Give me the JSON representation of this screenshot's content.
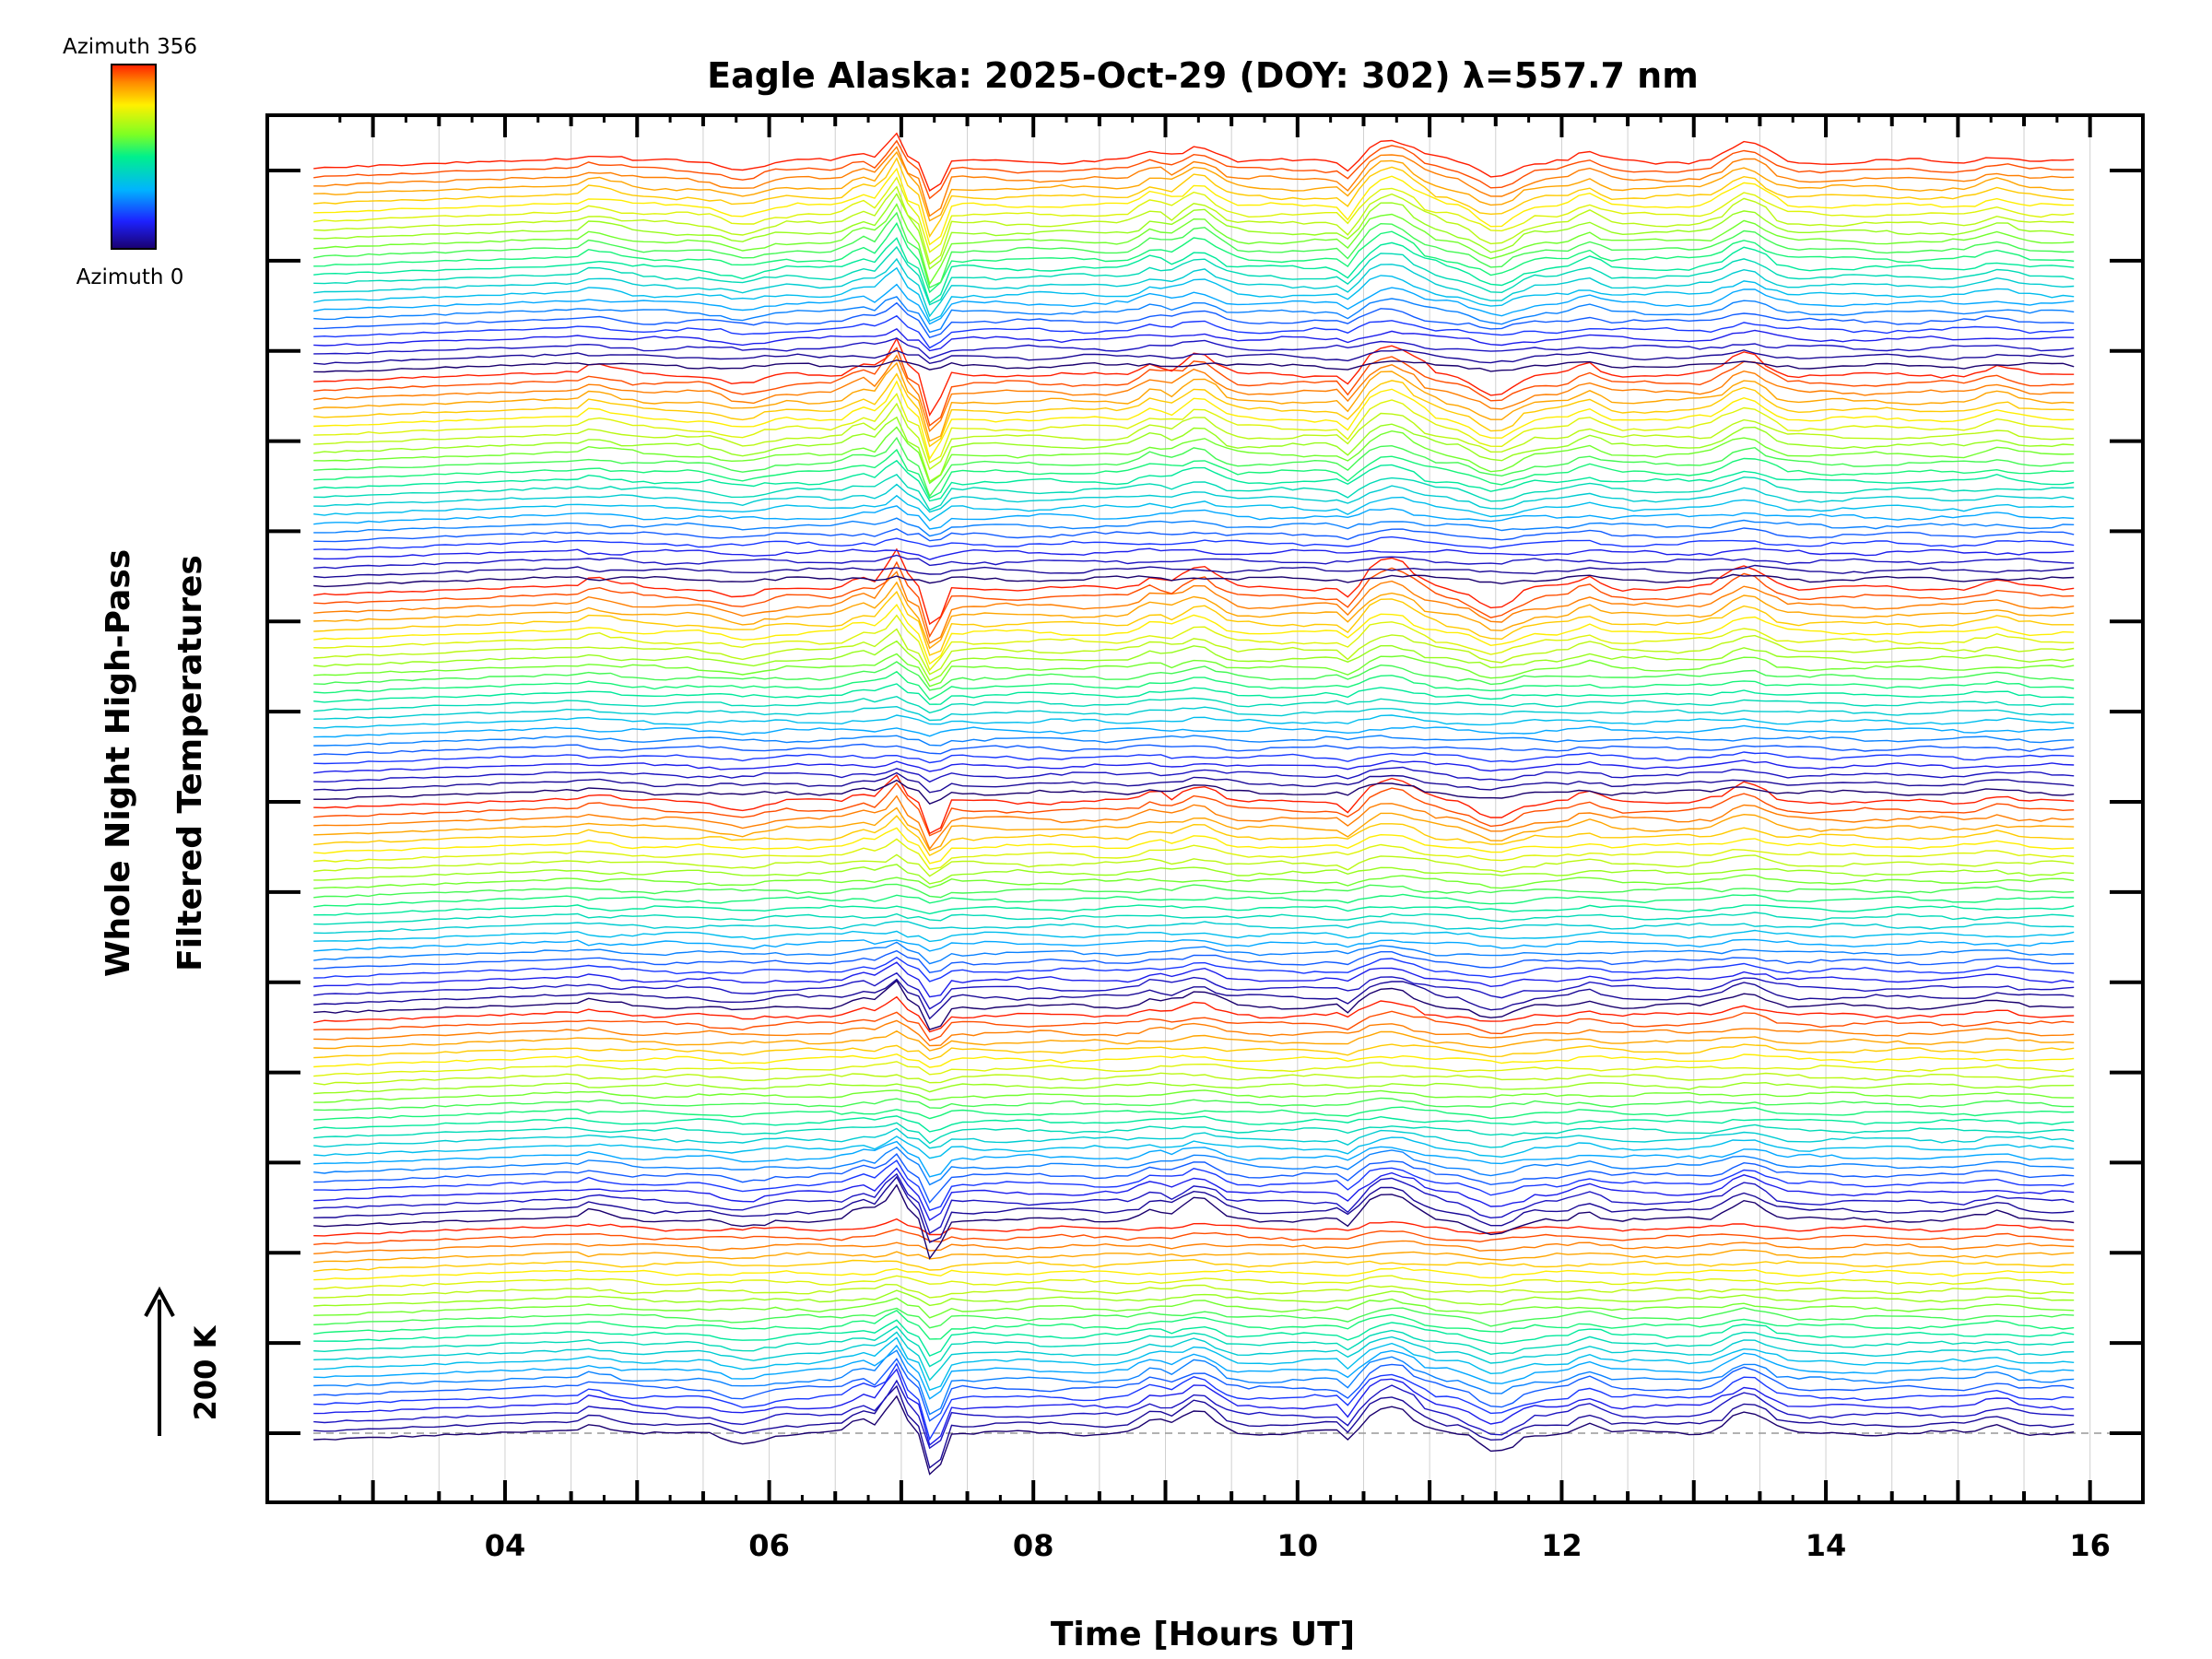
{
  "chart_data": {
    "type": "line",
    "title": "Eagle Alaska: 2025-Oct-29 (DOY: 302) λ=557.7 nm",
    "xlabel": "Time [Hours UT]",
    "ylabel_line1": "Whole Night High-Pass",
    "ylabel_line2": "Filtered Temperatures",
    "xlim": [
      2.2,
      16.4
    ],
    "x_tick_labels": [
      "04",
      "06",
      "08",
      "10",
      "12",
      "14",
      "16"
    ],
    "x_tick_values": [
      4,
      6,
      8,
      10,
      12,
      14,
      16
    ],
    "grid": true,
    "colorbar": {
      "top_label": "Azimuth 356",
      "bottom_label": "Azimuth 0",
      "colormap": "rainbow"
    },
    "scale_bar": {
      "label": "200 K",
      "value_K": 200
    },
    "series_groups": 6,
    "lines_per_group": 24,
    "offset_K_per_line": 8.5,
    "time_start": 2.55,
    "time_end": 15.9,
    "sample_step_hours": 0.0833,
    "event_features": [
      {
        "t": 6.95,
        "amp": 120,
        "width": 0.09
      },
      {
        "t": 7.25,
        "amp": -180,
        "width": 0.06
      },
      {
        "t": 6.7,
        "amp": 40,
        "width": 0.12
      },
      {
        "t": 9.25,
        "amp": 70,
        "width": 0.18
      },
      {
        "t": 8.9,
        "amp": 40,
        "width": 0.12
      },
      {
        "t": 10.7,
        "amp": 90,
        "width": 0.25
      },
      {
        "t": 10.4,
        "amp": -50,
        "width": 0.07
      },
      {
        "t": 11.5,
        "amp": -60,
        "width": 0.2
      },
      {
        "t": 12.2,
        "amp": 35,
        "width": 0.12
      },
      {
        "t": 13.4,
        "amp": 70,
        "width": 0.2
      },
      {
        "t": 15.3,
        "amp": 25,
        "width": 0.15
      },
      {
        "t": 4.6,
        "amp": 30,
        "width": 0.3
      },
      {
        "t": 5.8,
        "amp": -30,
        "width": 0.2
      }
    ],
    "colors": {
      "axis": "#000000",
      "grid": "#d0d0d0",
      "baseline_dash": "#999999"
    }
  }
}
